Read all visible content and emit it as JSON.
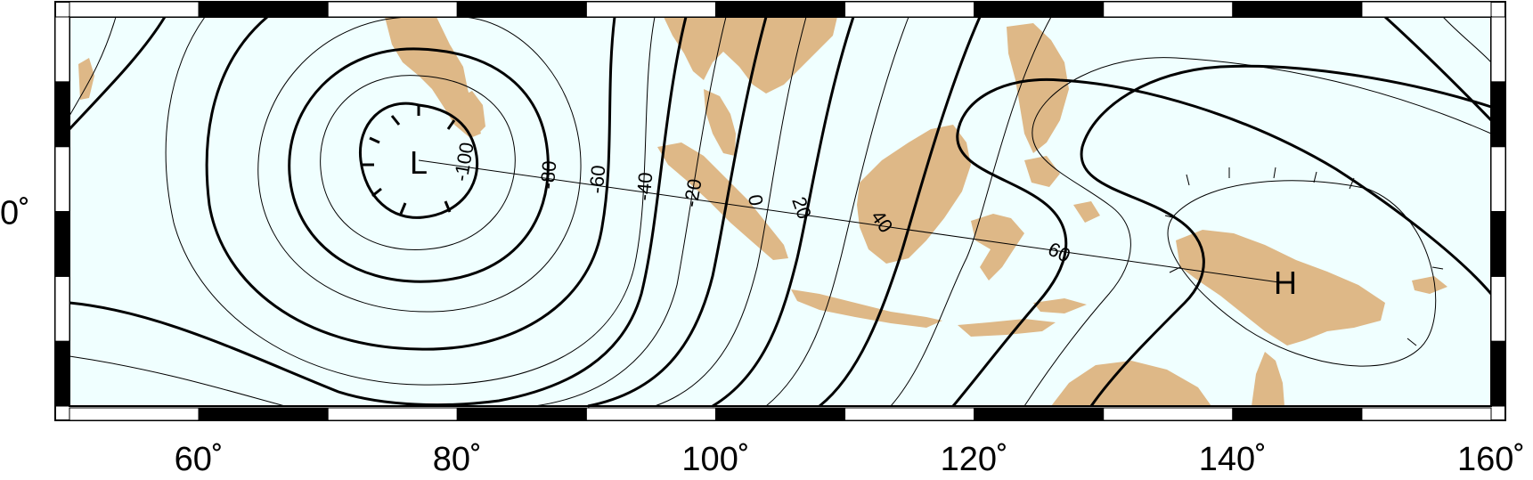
{
  "map": {
    "x_ticks": [
      {
        "lon": 60,
        "label": "60˚"
      },
      {
        "lon": 80,
        "label": "80˚"
      },
      {
        "lon": 100,
        "label": "100˚"
      },
      {
        "lon": 120,
        "label": "120˚"
      },
      {
        "lon": 140,
        "label": "140˚"
      },
      {
        "lon": 160,
        "label": "160˚"
      }
    ],
    "y_ticks": [
      {
        "lat": 0,
        "label": "0˚"
      }
    ],
    "contour_labels": [
      "-100",
      "-80",
      "-60",
      "-40",
      "-20",
      "0",
      "20",
      "40",
      "60"
    ],
    "low_label": "L",
    "high_label": "H",
    "colors": {
      "ocean": "#f0ffff",
      "land": "#deb887",
      "frame_dark": "#000000",
      "frame_light": "#ffffff"
    }
  }
}
